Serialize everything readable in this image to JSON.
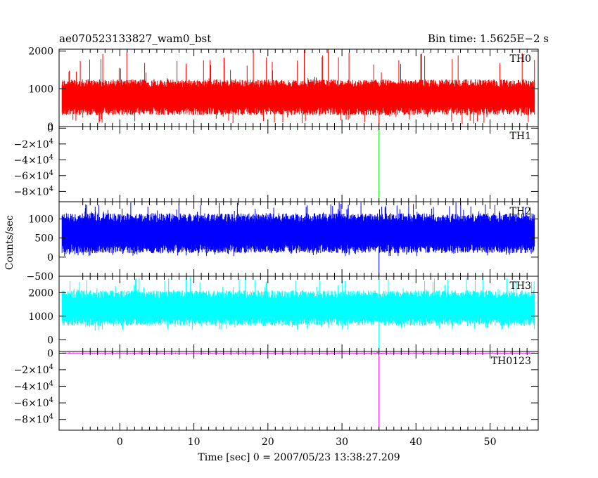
{
  "header": {
    "title": "ae070523133827_wam0_bst",
    "bin_time": "Bin time: 1.5625E−2 s"
  },
  "y_axis_label": "Counts/sec",
  "x_axis_label": "Time [sec] 0 = 2007/05/23 13:38:27.209",
  "x_tick_labels": [
    "0",
    "10",
    "20",
    "30",
    "40",
    "50"
  ],
  "chart_data": [
    {
      "type": "line",
      "name": "TH0",
      "color": "#ff0000",
      "xlim": [
        -8.2,
        56.5
      ],
      "ylim": [
        0,
        2050
      ],
      "y_ticks": [
        0,
        1000,
        2000
      ],
      "y_tick_labels": [
        "0",
        "1000",
        "2000"
      ],
      "x_range": [
        -7.8,
        56.0
      ],
      "band": [
        300,
        1250
      ],
      "center": 780,
      "spike_min": 50,
      "spike_max": 2050,
      "dip": {
        "x": 35.0,
        "y": 0
      }
    },
    {
      "type": "line",
      "name": "TH1",
      "color": "#00ee00",
      "xlim": [
        -8.2,
        56.5
      ],
      "ylim": [
        -93000,
        2000
      ],
      "y_ticks": [
        0,
        -20000,
        -40000,
        -60000,
        -80000
      ],
      "y_tick_labels": [
        "0",
        "−2×10",
        "−4×10",
        "−6×10",
        "−8×10"
      ],
      "y_tick_exponent": "4",
      "x_range": [
        -7.8,
        56.0
      ],
      "band": [
        -80,
        80
      ],
      "center": 0,
      "spike_min": -200,
      "spike_max": 200,
      "dip": {
        "x": 35.0,
        "y": -93000
      }
    },
    {
      "type": "line",
      "name": "TH2",
      "color": "#0000ff",
      "xlim": [
        -8.2,
        56.5
      ],
      "ylim": [
        -500,
        1450
      ],
      "y_ticks": [
        -500,
        0,
        500,
        1000
      ],
      "y_tick_labels": [
        "−500",
        "0",
        "500",
        "1000"
      ],
      "x_range": [
        -7.8,
        56.0
      ],
      "band": [
        100,
        1150
      ],
      "center": 620,
      "spike_min": 20,
      "spike_max": 1450,
      "dip": {
        "x": 35.0,
        "y": -500
      }
    },
    {
      "type": "line",
      "name": "TH3",
      "color": "#00ffff",
      "xlim": [
        -8.2,
        56.5
      ],
      "ylim": [
        -500,
        2700
      ],
      "y_ticks": [
        0,
        1000,
        2000
      ],
      "y_tick_labels": [
        "0",
        "1000",
        "2000"
      ],
      "x_range": [
        -7.8,
        56.0
      ],
      "band": [
        600,
        2100
      ],
      "center": 1320,
      "spike_min": 380,
      "spike_max": 2700,
      "dip": {
        "x": 35.0,
        "y": -500
      }
    },
    {
      "type": "line",
      "name": "TH0123",
      "color": "#ff00ff",
      "xlim": [
        -8.2,
        56.5
      ],
      "ylim": [
        -93000,
        2000
      ],
      "y_ticks": [
        0,
        -20000,
        -40000,
        -60000,
        -80000
      ],
      "y_tick_labels": [
        "0",
        "−2×10",
        "−4×10",
        "−6×10",
        "−8×10"
      ],
      "y_tick_exponent": "4",
      "x_range": [
        -7.8,
        56.0
      ],
      "band": [
        -400,
        600
      ],
      "center": 100,
      "spike_min": -800,
      "spike_max": 1200,
      "dip": {
        "x": 35.0,
        "y": -93000
      }
    }
  ]
}
